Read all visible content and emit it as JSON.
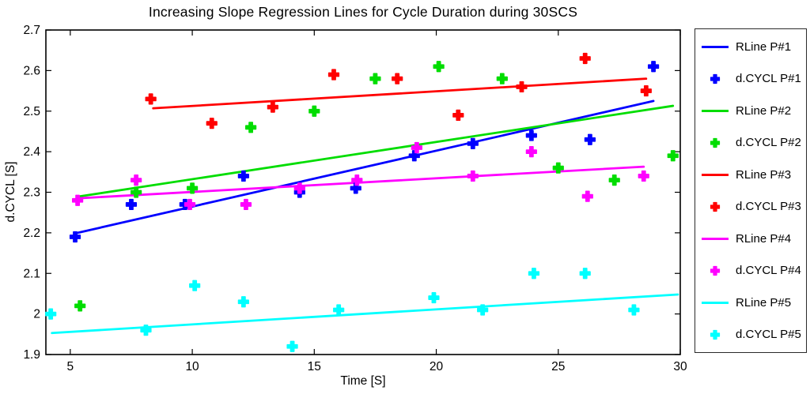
{
  "chart_data": {
    "type": "scatter",
    "title": "Increasing Slope Regression Lines for Cycle Duration during 30SCS",
    "xlabel": "Time [S]",
    "ylabel": "d.CYCL [S]",
    "xlim": [
      4,
      30
    ],
    "ylim": [
      1.9,
      2.7
    ],
    "xticks": [
      5,
      10,
      15,
      20,
      25,
      30
    ],
    "xtick_labels": [
      "5",
      "10",
      "15",
      "20",
      "25",
      "30"
    ],
    "yticks": [
      1.9,
      2.0,
      2.1,
      2.2,
      2.3,
      2.4,
      2.5,
      2.6,
      2.7
    ],
    "ytick_labels": [
      "1.9",
      "2",
      "2.1",
      "2.2",
      "2.3",
      "2.4",
      "2.5",
      "2.6",
      "2.7"
    ],
    "grid": false,
    "legend_position": "right-outside",
    "series": [
      {
        "name": "RLine P#1",
        "kind": "line",
        "color": "#0000ff",
        "line": [
          [
            5.3,
            2.2
          ],
          [
            28.9,
            2.525
          ]
        ]
      },
      {
        "name": "d.CYCL P#1",
        "kind": "scatter",
        "color": "#0000ff",
        "points": [
          [
            5.2,
            2.19
          ],
          [
            7.5,
            2.27
          ],
          [
            9.7,
            2.27
          ],
          [
            12.1,
            2.34
          ],
          [
            14.4,
            2.3
          ],
          [
            16.7,
            2.31
          ],
          [
            19.1,
            2.39
          ],
          [
            21.5,
            2.42
          ],
          [
            23.9,
            2.44
          ],
          [
            26.3,
            2.43
          ],
          [
            28.9,
            2.61
          ]
        ]
      },
      {
        "name": "RLine P#2",
        "kind": "line",
        "color": "#00dd00",
        "line": [
          [
            5.4,
            2.29
          ],
          [
            29.7,
            2.513
          ]
        ]
      },
      {
        "name": "d.CYCL P#2",
        "kind": "scatter",
        "color": "#00dd00",
        "points": [
          [
            5.4,
            2.02
          ],
          [
            7.7,
            2.3
          ],
          [
            10.0,
            2.31
          ],
          [
            12.4,
            2.46
          ],
          [
            15.0,
            2.5
          ],
          [
            17.5,
            2.58
          ],
          [
            20.1,
            2.61
          ],
          [
            22.7,
            2.58
          ],
          [
            25.0,
            2.36
          ],
          [
            27.3,
            2.33
          ],
          [
            29.7,
            2.39
          ]
        ]
      },
      {
        "name": "RLine P#3",
        "kind": "line",
        "color": "#ff0000",
        "line": [
          [
            8.4,
            2.507
          ],
          [
            28.6,
            2.58
          ]
        ]
      },
      {
        "name": "d.CYCL P#3",
        "kind": "scatter",
        "color": "#ff0000",
        "points": [
          [
            8.3,
            2.53
          ],
          [
            10.8,
            2.47
          ],
          [
            13.3,
            2.51
          ],
          [
            15.8,
            2.59
          ],
          [
            18.4,
            2.58
          ],
          [
            20.9,
            2.49
          ],
          [
            23.5,
            2.56
          ],
          [
            26.1,
            2.63
          ],
          [
            28.6,
            2.55
          ]
        ]
      },
      {
        "name": "RLine P#4",
        "kind": "line",
        "color": "#ff00ff",
        "line": [
          [
            5.3,
            2.285
          ],
          [
            28.5,
            2.363
          ]
        ]
      },
      {
        "name": "d.CYCL P#4",
        "kind": "scatter",
        "color": "#ff00ff",
        "points": [
          [
            5.3,
            2.28
          ],
          [
            7.7,
            2.33
          ],
          [
            9.9,
            2.27
          ],
          [
            12.2,
            2.27
          ],
          [
            14.4,
            2.31
          ],
          [
            16.75,
            2.33
          ],
          [
            19.2,
            2.41
          ],
          [
            21.5,
            2.34
          ],
          [
            23.9,
            2.4
          ],
          [
            26.2,
            2.29
          ],
          [
            28.5,
            2.34
          ]
        ]
      },
      {
        "name": "RLine P#5",
        "kind": "line",
        "color": "#00ffff",
        "line": [
          [
            4.25,
            1.953
          ],
          [
            29.9,
            2.048
          ]
        ]
      },
      {
        "name": "d.CYCL P#5",
        "kind": "scatter",
        "color": "#00ffff",
        "points": [
          [
            4.2,
            2.0
          ],
          [
            8.1,
            1.96
          ],
          [
            10.1,
            2.07
          ],
          [
            12.1,
            2.03
          ],
          [
            14.1,
            1.92
          ],
          [
            16.0,
            2.01
          ],
          [
            19.9,
            2.04
          ],
          [
            21.9,
            2.01
          ],
          [
            24.0,
            2.1
          ],
          [
            26.1,
            2.1
          ],
          [
            28.1,
            2.01
          ]
        ]
      }
    ]
  },
  "legend": {
    "entries": [
      {
        "label": "RLine P#1",
        "kind": "line",
        "color": "#0000ff"
      },
      {
        "label": "d.CYCL P#1",
        "kind": "marker",
        "color": "#0000ff"
      },
      {
        "label": "RLine P#2",
        "kind": "line",
        "color": "#00dd00"
      },
      {
        "label": "d.CYCL P#2",
        "kind": "marker",
        "color": "#00dd00"
      },
      {
        "label": "RLine P#3",
        "kind": "line",
        "color": "#ff0000"
      },
      {
        "label": "d.CYCL P#3",
        "kind": "marker",
        "color": "#ff0000"
      },
      {
        "label": "RLine P#4",
        "kind": "line",
        "color": "#ff00ff"
      },
      {
        "label": "d.CYCL P#4",
        "kind": "marker",
        "color": "#ff00ff"
      },
      {
        "label": "RLine P#5",
        "kind": "line",
        "color": "#00ffff"
      },
      {
        "label": "d.CYCL P#5",
        "kind": "marker",
        "color": "#00ffff"
      }
    ]
  }
}
